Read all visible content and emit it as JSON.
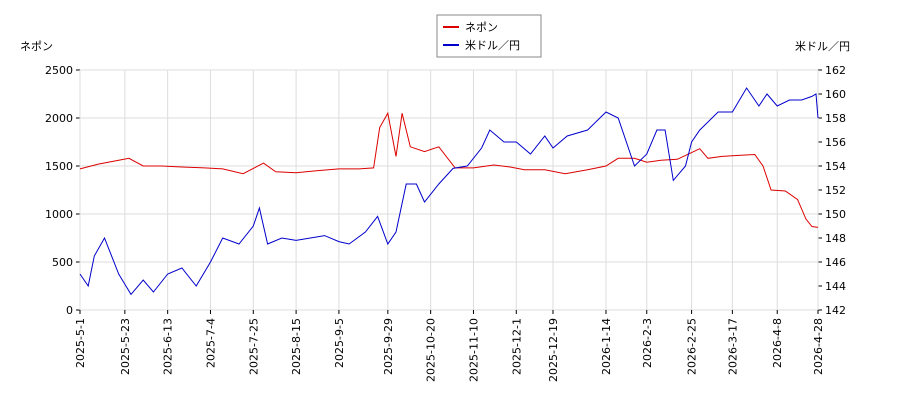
{
  "chart_data": {
    "type": "line",
    "y_label": "ネポン",
    "y2_label": "米ドル／円",
    "xlim": [
      "2025-5-1",
      "2026-4-28"
    ],
    "xticks": [
      "2025-5-1",
      "2025-5-23",
      "2025-6-13",
      "2025-7-4",
      "2025-7-25",
      "2025-8-15",
      "2025-9-5",
      "2025-9-29",
      "2025-10-20",
      "2025-11-10",
      "2025-12-1",
      "2025-12-19",
      "2026-1-14",
      "2026-2-3",
      "2026-2-25",
      "2026-3-17",
      "2026-4-8",
      "2026-4-28"
    ],
    "ylim": [
      0,
      2500
    ],
    "yticks": [
      0,
      500,
      1000,
      1500,
      2000,
      2500
    ],
    "y2lim": [
      142,
      162
    ],
    "y2ticks": [
      142,
      144,
      146,
      148,
      150,
      152,
      154,
      156,
      158,
      160,
      162
    ],
    "grid": true,
    "legend": "top",
    "series": [
      {
        "name": "ネポン",
        "color": "#dd0000",
        "x": [
          "2025-5-1",
          "2025-5-10",
          "2025-5-20",
          "2025-5-25",
          "2025-6-1",
          "2025-6-10",
          "2025-6-20",
          "2025-7-1",
          "2025-7-10",
          "2025-7-20",
          "2025-7-30",
          "2025-8-5",
          "2025-8-15",
          "2025-8-25",
          "2025-9-5",
          "2025-9-15",
          "2025-9-22",
          "2025-9-25",
          "2025-9-29",
          "2025-10-3",
          "2025-10-6",
          "2025-10-10",
          "2025-10-17",
          "2025-10-24",
          "2025-11-1",
          "2025-11-10",
          "2025-11-20",
          "2025-11-28",
          "2025-12-5",
          "2025-12-15",
          "2025-12-25",
          "2026-1-5",
          "2026-1-14",
          "2026-1-20",
          "2026-1-28",
          "2026-2-3",
          "2026-2-10",
          "2026-2-18",
          "2026-2-25",
          "2026-3-1",
          "2026-3-5",
          "2026-3-12",
          "2026-3-20",
          "2026-3-28",
          "2026-4-1",
          "2026-4-5",
          "2026-4-12",
          "2026-4-18",
          "2026-4-22",
          "2026-4-25",
          "2026-4-28"
        ],
        "values": [
          1470,
          1520,
          1560,
          1580,
          1500,
          1500,
          1490,
          1480,
          1470,
          1420,
          1530,
          1440,
          1430,
          1450,
          1470,
          1470,
          1480,
          1900,
          2050,
          1600,
          2050,
          1700,
          1650,
          1700,
          1480,
          1480,
          1510,
          1490,
          1460,
          1460,
          1420,
          1460,
          1500,
          1580,
          1580,
          1540,
          1560,
          1570,
          1640,
          1680,
          1580,
          1600,
          1610,
          1620,
          1500,
          1250,
          1240,
          1150,
          950,
          870,
          860
        ]
      },
      {
        "name": "米ドル／円",
        "color": "#0000cc",
        "axis": "y2",
        "x": [
          "2025-5-1",
          "2025-5-5",
          "2025-5-8",
          "2025-5-13",
          "2025-5-20",
          "2025-5-26",
          "2025-6-1",
          "2025-6-6",
          "2025-6-13",
          "2025-6-20",
          "2025-6-27",
          "2025-7-4",
          "2025-7-10",
          "2025-7-18",
          "2025-7-25",
          "2025-7-28",
          "2025-8-1",
          "2025-8-8",
          "2025-8-15",
          "2025-8-22",
          "2025-8-29",
          "2025-9-5",
          "2025-9-10",
          "2025-9-18",
          "2025-9-24",
          "2025-9-29",
          "2025-10-3",
          "2025-10-8",
          "2025-10-13",
          "2025-10-17",
          "2025-10-24",
          "2025-10-31",
          "2025-11-7",
          "2025-11-14",
          "2025-11-18",
          "2025-11-25",
          "2025-12-1",
          "2025-12-8",
          "2025-12-15",
          "2025-12-19",
          "2025-12-26",
          "2026-1-5",
          "2026-1-14",
          "2026-1-20",
          "2026-1-28",
          "2026-2-3",
          "2026-2-8",
          "2026-2-12",
          "2026-2-16",
          "2026-2-22",
          "2026-2-25",
          "2026-3-1",
          "2026-3-10",
          "2026-3-17",
          "2026-3-24",
          "2026-3-30",
          "2026-4-3",
          "2026-4-8",
          "2026-4-14",
          "2026-4-20",
          "2026-4-25",
          "2026-4-27",
          "2026-4-28"
        ],
        "values": [
          145,
          144,
          146.5,
          148,
          145,
          143.3,
          144.5,
          143.5,
          145,
          145.5,
          144,
          146,
          148,
          147.5,
          149,
          150.5,
          147.5,
          148,
          147.8,
          148,
          148.2,
          147.7,
          147.5,
          148.5,
          149.8,
          147.5,
          148.5,
          152.5,
          152.5,
          151,
          152.5,
          153.8,
          154,
          155.5,
          157,
          156,
          156,
          155,
          156.5,
          155.5,
          156.5,
          157,
          158.5,
          158,
          154,
          155,
          157,
          157,
          152.8,
          154,
          156,
          157,
          158.5,
          158.5,
          160.5,
          159,
          160,
          159,
          159.5,
          159.5,
          159.8,
          160,
          158
        ]
      }
    ]
  }
}
